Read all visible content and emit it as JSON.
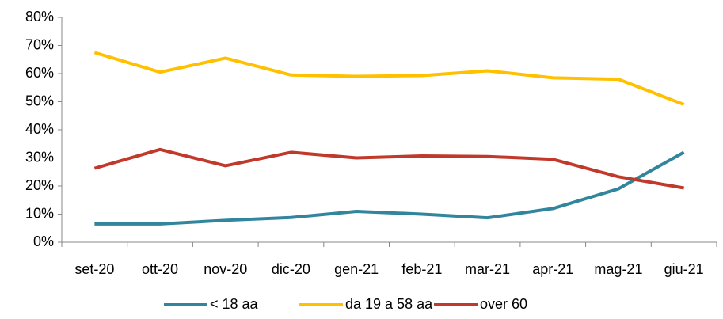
{
  "chart_data": {
    "type": "line",
    "categories": [
      "set-20",
      "ott-20",
      "nov-20",
      "dic-20",
      "gen-21",
      "feb-21",
      "mar-21",
      "apr-21",
      "mag-21",
      "giu-21"
    ],
    "series": [
      {
        "name": "< 18 aa",
        "color": "#31859c",
        "values": [
          6.5,
          6.5,
          7.8,
          8.8,
          11,
          10,
          8.7,
          12,
          19,
          32
        ]
      },
      {
        "name": "da 19 a 58 aa",
        "color": "#ffc000",
        "values": [
          67.5,
          60.5,
          65.5,
          59.5,
          59,
          59.3,
          61,
          58.5,
          58,
          49
        ]
      },
      {
        "name": "over 60",
        "color": "#c0392b",
        "values": [
          26.3,
          33,
          27.2,
          32,
          30,
          30.7,
          30.5,
          29.5,
          23.3,
          19.3
        ]
      }
    ],
    "ylim": [
      0,
      80
    ],
    "yticks": [
      {
        "value": 0,
        "label": "0%"
      },
      {
        "value": 10,
        "label": "10%"
      },
      {
        "value": 20,
        "label": "20%"
      },
      {
        "value": 30,
        "label": "30%"
      },
      {
        "value": 40,
        "label": "40%"
      },
      {
        "value": 50,
        "label": "50%"
      },
      {
        "value": 60,
        "label": "60%"
      },
      {
        "value": 70,
        "label": "70%"
      },
      {
        "value": 80,
        "label": "80%"
      }
    ],
    "grid": false,
    "legend": "bottom"
  }
}
